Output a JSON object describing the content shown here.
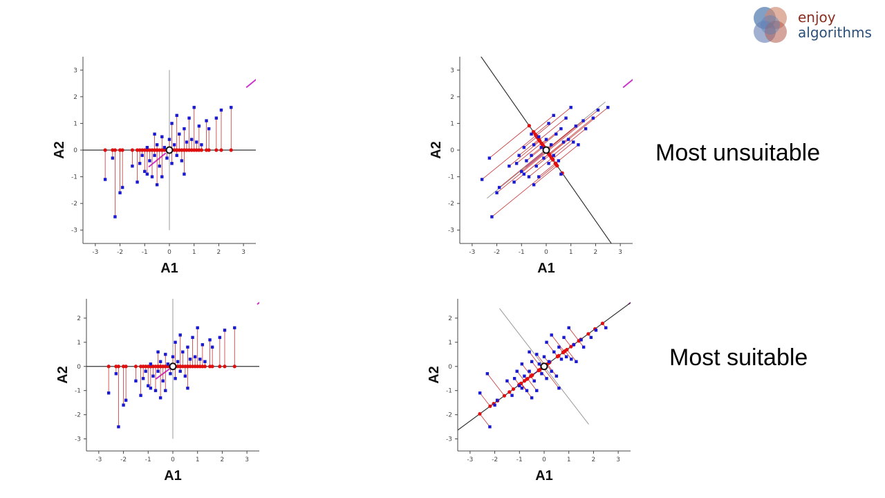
{
  "logo": {
    "line1": "enjoy",
    "line2": "algorithms",
    "colors": [
      "#3f6da8",
      "#b35b4c",
      "#6f86b8",
      "#d08870"
    ]
  },
  "labels": {
    "unsuitable": "Most unsuitable",
    "suitable": "Most suitable"
  },
  "colors": {
    "points": "#1a1ad0",
    "projections": "#e01010",
    "axis_line": "#333333",
    "pc_line": "#cc33cc",
    "residual": "#c83030"
  },
  "chart_data": [
    {
      "type": "scatter",
      "id": "top-left",
      "xlabel": "A1",
      "ylabel": "A2",
      "xlim": [
        -3.5,
        3.5
      ],
      "ylim": [
        -3.5,
        3.5
      ],
      "xticks": [
        "-3",
        "-2",
        "-1",
        "0",
        "1",
        "2",
        "3"
      ],
      "yticks": [
        "-3",
        "-2",
        "-1",
        "0",
        "1",
        "2",
        "3"
      ],
      "projection_angle_deg": 0,
      "grid": false
    },
    {
      "type": "scatter",
      "id": "top-right",
      "xlabel": "A1",
      "ylabel": "A2",
      "xlim": [
        -3.5,
        3.5
      ],
      "ylim": [
        -3.5,
        3.5
      ],
      "xticks": [
        "-3",
        "-2",
        "-1",
        "0",
        "1",
        "2",
        "3"
      ],
      "yticks": [
        "-3",
        "-2",
        "-1",
        "0",
        "1",
        "2",
        "3"
      ],
      "projection_angle_deg": 127,
      "grid": false
    },
    {
      "type": "scatter",
      "id": "bottom-left",
      "xlabel": "A1",
      "ylabel": "A2",
      "xlim": [
        -3.5,
        3.5
      ],
      "ylim": [
        -3.5,
        2.8
      ],
      "xticks": [
        "-3",
        "-2",
        "-1",
        "0",
        "1",
        "2",
        "3"
      ],
      "yticks": [
        "-3",
        "-2",
        "-1",
        "0",
        "1",
        "2"
      ],
      "projection_angle_deg": 0,
      "grid": false
    },
    {
      "type": "scatter",
      "id": "bottom-right",
      "xlabel": "A1",
      "ylabel": "A2",
      "xlim": [
        -3.5,
        3.5
      ],
      "ylim": [
        -3.5,
        2.8
      ],
      "xticks": [
        "-3",
        "-2",
        "-1",
        "0",
        "1",
        "2",
        "3"
      ],
      "yticks": [
        "-3",
        "-2",
        "-1",
        "0",
        "1",
        "2"
      ],
      "projection_angle_deg": 37,
      "grid": false
    }
  ],
  "points": [
    [
      -2.2,
      -2.5
    ],
    [
      -2.6,
      -1.1
    ],
    [
      -2.0,
      -1.6
    ],
    [
      -1.9,
      -1.4
    ],
    [
      -2.3,
      -0.3
    ],
    [
      -1.3,
      -1.2
    ],
    [
      -1.2,
      -0.5
    ],
    [
      -1.1,
      -0.2
    ],
    [
      -1.0,
      -0.8
    ],
    [
      -0.9,
      0.1
    ],
    [
      -0.8,
      -0.4
    ],
    [
      -0.7,
      -1.0
    ],
    [
      -0.6,
      0.6
    ],
    [
      -0.6,
      -0.2
    ],
    [
      -0.5,
      0.2
    ],
    [
      -0.4,
      -0.6
    ],
    [
      -0.3,
      0.5
    ],
    [
      -0.3,
      -1.0
    ],
    [
      -0.2,
      0.1
    ],
    [
      -0.1,
      -0.3
    ],
    [
      0.0,
      0.4
    ],
    [
      0.1,
      1.0
    ],
    [
      0.1,
      -0.5
    ],
    [
      0.2,
      0.2
    ],
    [
      0.3,
      -0.2
    ],
    [
      0.4,
      0.6
    ],
    [
      0.5,
      -0.4
    ],
    [
      0.6,
      0.8
    ],
    [
      0.7,
      0.3
    ],
    [
      0.8,
      1.2
    ],
    [
      0.9,
      0.4
    ],
    [
      1.0,
      1.6
    ],
    [
      1.1,
      0.3
    ],
    [
      1.2,
      0.9
    ],
    [
      1.5,
      1.1
    ],
    [
      1.6,
      0.8
    ],
    [
      1.9,
      1.2
    ],
    [
      2.1,
      1.5
    ],
    [
      2.5,
      1.6
    ],
    [
      -0.5,
      -1.3
    ],
    [
      -0.9,
      -0.9
    ],
    [
      0.3,
      1.3
    ],
    [
      0.6,
      -0.9
    ],
    [
      1.3,
      0.2
    ],
    [
      -1.5,
      -0.6
    ]
  ]
}
